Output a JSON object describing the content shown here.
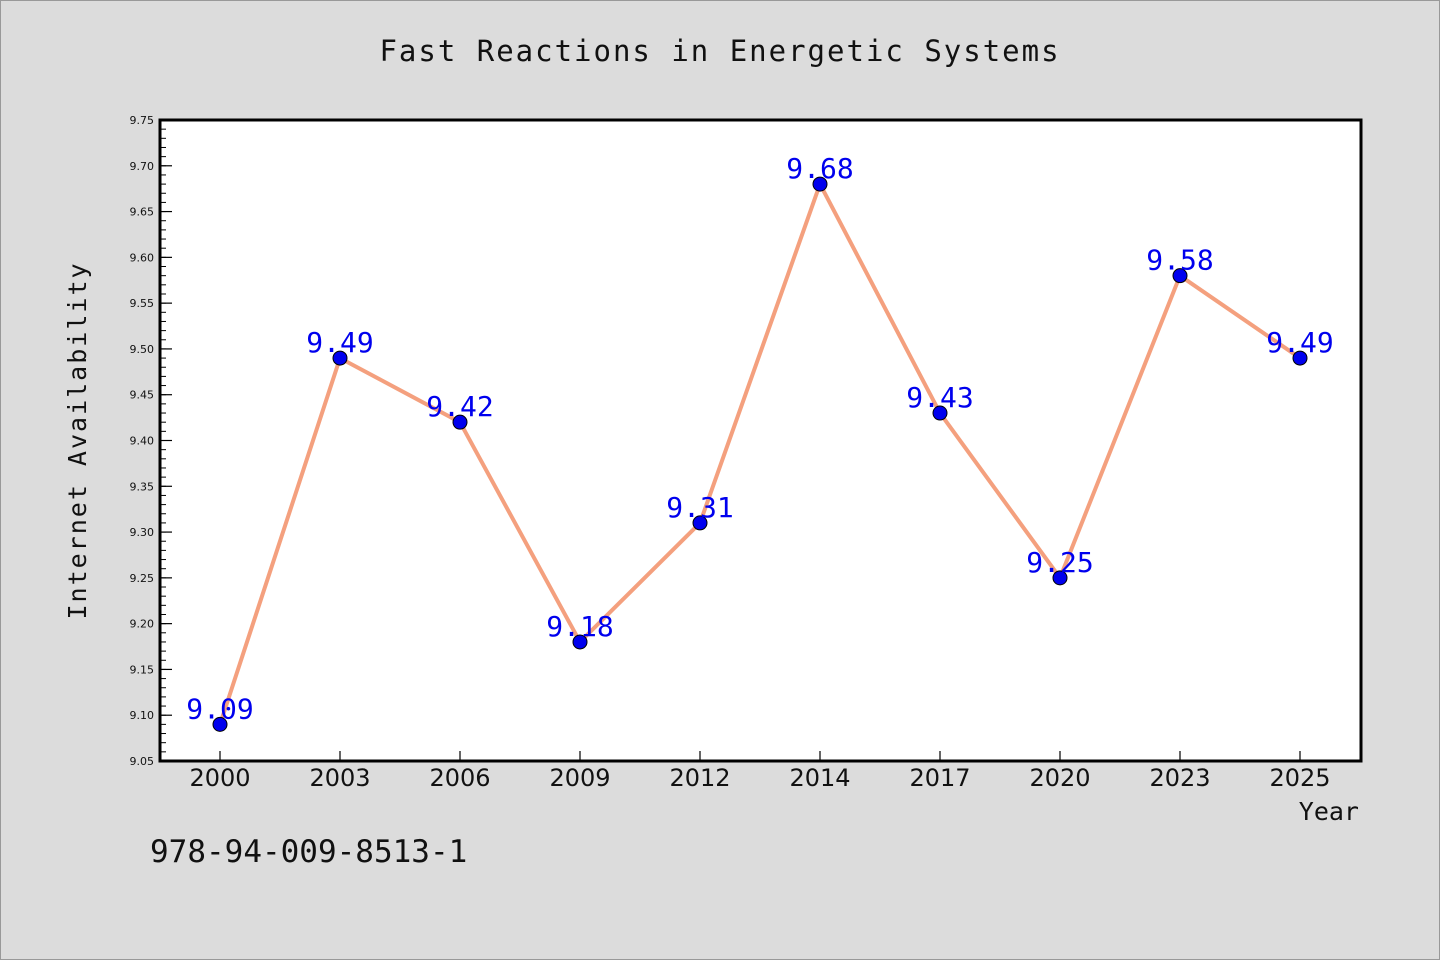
{
  "chart_data": {
    "type": "line",
    "title": "Fast Reactions in Energetic Systems",
    "xlabel": "Year",
    "ylabel": "Internet Availability",
    "categories": [
      "2000",
      "2003",
      "2006",
      "2009",
      "2012",
      "2014",
      "2017",
      "2020",
      "2023",
      "2025"
    ],
    "series": [
      {
        "values": [
          9.09,
          9.49,
          9.42,
          9.18,
          9.31,
          9.68,
          9.43,
          9.25,
          9.58,
          9.49
        ]
      }
    ],
    "data_labels": [
      "9.09",
      "9.49",
      "9.42",
      "9.18",
      "9.31",
      "9.68",
      "9.43",
      "9.25",
      "9.58",
      "9.49"
    ],
    "yticks": [
      "9.05",
      "9.10",
      "9.15",
      "9.20",
      "9.25",
      "9.30",
      "9.35",
      "9.40",
      "9.45",
      "9.50",
      "9.55",
      "9.60",
      "9.65",
      "9.70",
      "9.75"
    ],
    "ylim": [
      9.05,
      9.75
    ],
    "grid": false,
    "line_color": "#f4a07e",
    "marker_color": "#0000ee",
    "label_color": "#0000ee"
  },
  "footer": {
    "isbn": "978-94-009-8513-1"
  }
}
